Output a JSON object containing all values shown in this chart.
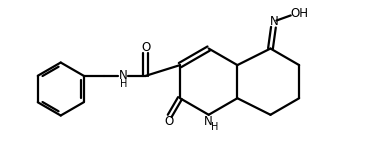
{
  "background_color": "#ffffff",
  "line_color": "#000000",
  "line_width": 1.6,
  "fig_width": 3.68,
  "fig_height": 1.67,
  "dpi": 100,
  "xlim": [
    0,
    10
  ],
  "ylim": [
    0,
    4.5
  ]
}
